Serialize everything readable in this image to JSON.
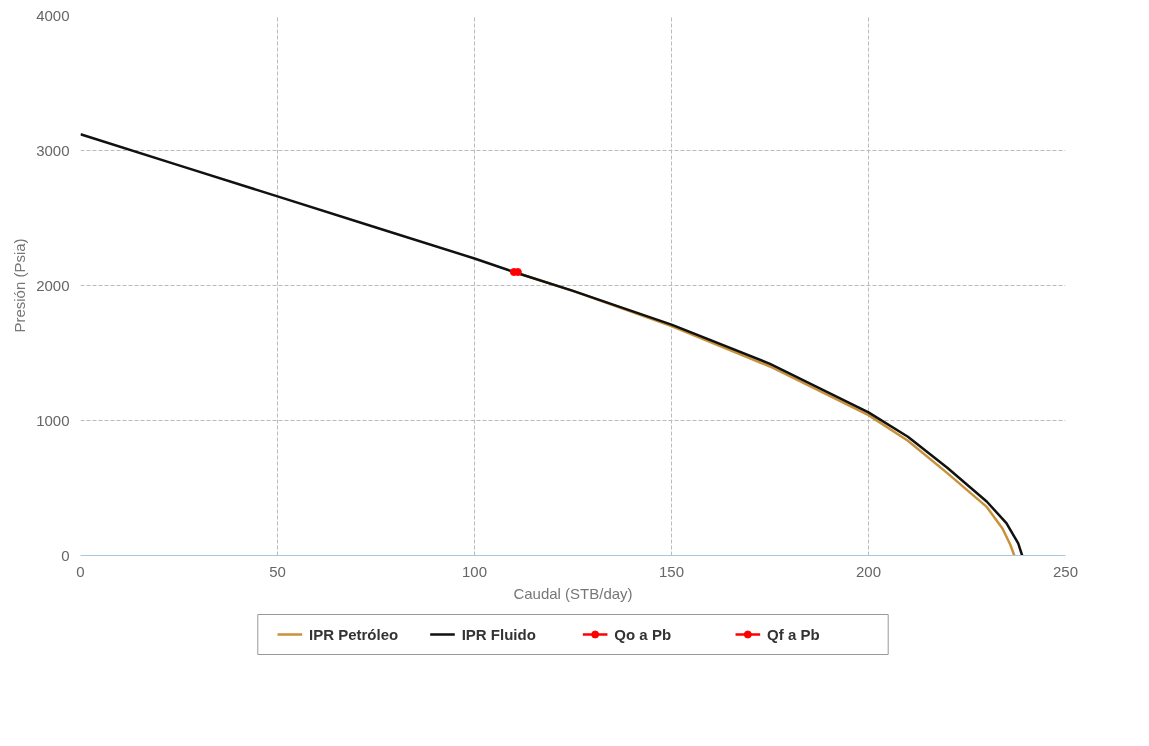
{
  "chart_data": {
    "type": "line",
    "xlabel": "Caudal (STB/day)",
    "ylabel": "Presión (Psia)",
    "xlim": [
      0,
      250
    ],
    "ylim": [
      0,
      4000
    ],
    "xticks": [
      0,
      50,
      100,
      150,
      200,
      250
    ],
    "yticks": [
      0,
      1000,
      2000,
      3000,
      4000
    ],
    "grid": true,
    "legend": "bottom",
    "line_style": "solid",
    "marker": "none",
    "series": [
      {
        "name": "IPR Petróleo",
        "color": "#c8913a",
        "x": [
          110,
          125,
          150,
          175,
          200,
          210,
          220,
          230,
          234,
          236,
          237
        ],
        "values": [
          2100,
          1960,
          1700,
          1400,
          1040,
          850,
          610,
          360,
          200,
          80,
          0
        ]
      },
      {
        "name": "IPR Fluido",
        "color": "#111111",
        "x": [
          0,
          25,
          50,
          75,
          100,
          110,
          125,
          150,
          175,
          200,
          210,
          220,
          230,
          235,
          238,
          239
        ],
        "values": [
          3120,
          2890,
          2660,
          2430,
          2200,
          2100,
          1960,
          1710,
          1420,
          1060,
          880,
          650,
          400,
          240,
          90,
          0
        ]
      },
      {
        "name": "Qo a Pb",
        "color": "#ff0000",
        "marker": "circle",
        "x": [
          110
        ],
        "values": [
          2100
        ]
      },
      {
        "name": "Qf a Pb",
        "color": "#ff0000",
        "marker": "circle",
        "x": [
          111
        ],
        "values": [
          2100
        ]
      }
    ]
  }
}
